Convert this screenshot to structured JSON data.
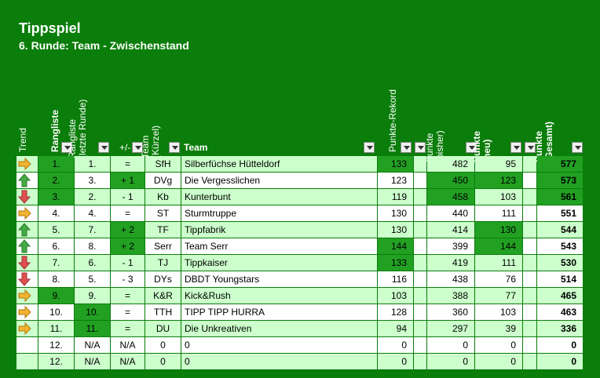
{
  "title": "Tippspiel",
  "subtitle": "6. Runde: Team - Zwischenstand",
  "headers": {
    "trend": "Trend",
    "rangliste": "Rangliste",
    "rangliste_letzte_1": "Rangliste",
    "rangliste_letzte_2": "(letzte Runde)",
    "plusminus": "+/-",
    "team_kuerzel_1": "Team",
    "team_kuerzel_2": "(Kürzel)",
    "team": "Team",
    "rekord": "Punkte-Rekord",
    "bisher_1": "Punkte",
    "bisher_2": "(bisher)",
    "neu_1": "Punkte",
    "neu_2": "(neu)",
    "gesamt_1": "Punkte",
    "gesamt_2": "(Gesamt)"
  },
  "colors": {
    "bg": "#0a7d0a",
    "light": "#ccffcc",
    "white": "#ffffff",
    "dark": "#22a022"
  },
  "rows": [
    {
      "trend": "right",
      "rank": "1.",
      "last": "1.",
      "diff": "=",
      "abbr": "SfH",
      "team": "Silberfüchse Hütteldorf",
      "rekord": "133",
      "bisher": "482",
      "neu": "95",
      "gesamt": "577"
    },
    {
      "trend": "up",
      "rank": "2.",
      "last": "3.",
      "diff": "+ 1",
      "abbr": "DVg",
      "team": "Die Vergesslichen",
      "rekord": "123",
      "bisher": "450",
      "neu": "123",
      "gesamt": "573"
    },
    {
      "trend": "down",
      "rank": "3.",
      "last": "2.",
      "diff": "- 1",
      "abbr": "Kb",
      "team": "Kunterbunt",
      "rekord": "119",
      "bisher": "458",
      "neu": "103",
      "gesamt": "561"
    },
    {
      "trend": "right",
      "rank": "4.",
      "last": "4.",
      "diff": "=",
      "abbr": "ST",
      "team": "Sturmtruppe",
      "rekord": "130",
      "bisher": "440",
      "neu": "111",
      "gesamt": "551"
    },
    {
      "trend": "up",
      "rank": "5.",
      "last": "7.",
      "diff": "+ 2",
      "abbr": "TF",
      "team": "Tippfabrik",
      "rekord": "130",
      "bisher": "414",
      "neu": "130",
      "gesamt": "544"
    },
    {
      "trend": "up",
      "rank": "6.",
      "last": "8.",
      "diff": "+ 2",
      "abbr": "Serr",
      "team": "Team Serr",
      "rekord": "144",
      "bisher": "399",
      "neu": "144",
      "gesamt": "543"
    },
    {
      "trend": "down",
      "rank": "7.",
      "last": "6.",
      "diff": "- 1",
      "abbr": "TJ",
      "team": "Tippkaiser",
      "rekord": "133",
      "bisher": "419",
      "neu": "111",
      "gesamt": "530"
    },
    {
      "trend": "down",
      "rank": "8.",
      "last": "5.",
      "diff": "- 3",
      "abbr": "DYs",
      "team": "DBDT Youngstars",
      "rekord": "116",
      "bisher": "438",
      "neu": "76",
      "gesamt": "514"
    },
    {
      "trend": "right",
      "rank": "9.",
      "last": "9.",
      "diff": "=",
      "abbr": "K&R",
      "team": "Kick&Rush",
      "rekord": "103",
      "bisher": "388",
      "neu": "77",
      "gesamt": "465"
    },
    {
      "trend": "right",
      "rank": "10.",
      "last": "10.",
      "diff": "=",
      "abbr": "TTH",
      "team": "TIPP TIPP HURRA",
      "rekord": "128",
      "bisher": "360",
      "neu": "103",
      "gesamt": "463"
    },
    {
      "trend": "right",
      "rank": "11.",
      "last": "11.",
      "diff": "=",
      "abbr": "DU",
      "team": "Die Unkreativen",
      "rekord": "94",
      "bisher": "297",
      "neu": "39",
      "gesamt": "336"
    },
    {
      "trend": "",
      "rank": "12.",
      "last": "N/A",
      "diff": "N/A",
      "abbr": "0",
      "team": "0",
      "rekord": "0",
      "bisher": "0",
      "neu": "0",
      "gesamt": "0"
    },
    {
      "trend": "",
      "rank": "12.",
      "last": "N/A",
      "diff": "N/A",
      "abbr": "0",
      "team": "0",
      "rekord": "0",
      "bisher": "0",
      "neu": "0",
      "gesamt": "0"
    }
  ]
}
